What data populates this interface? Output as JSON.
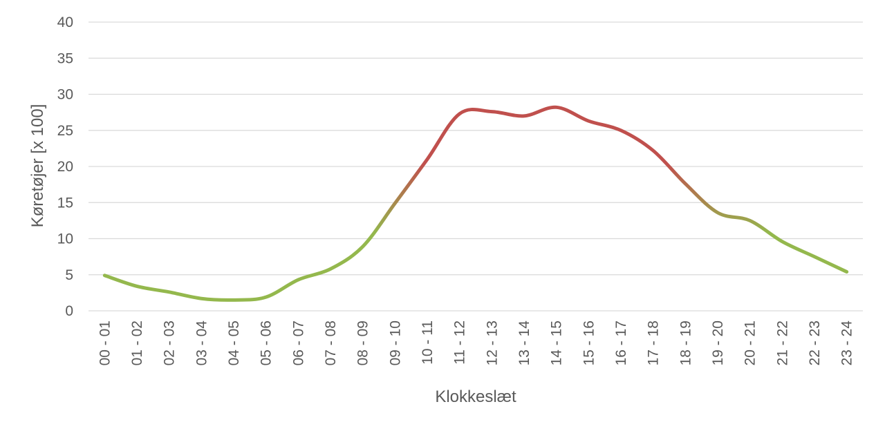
{
  "chart_data": {
    "type": "line",
    "title": "",
    "xlabel": "Klokkeslæt",
    "ylabel": "Køretøjer [x 100]",
    "ylim": [
      0,
      40
    ],
    "yticks": [
      0,
      5,
      10,
      15,
      20,
      25,
      30,
      35,
      40
    ],
    "grid": true,
    "legend": "none",
    "categories": [
      "00 - 01",
      "01 - 02",
      "02 - 03",
      "03 - 04",
      "04 - 05",
      "05 - 06",
      "06 - 07",
      "07 - 08",
      "08 - 09",
      "09 - 10",
      "10 - 11",
      "11 - 12",
      "12 - 13",
      "13 - 14",
      "14 - 15",
      "15 - 16",
      "16 - 17",
      "17 - 18",
      "18 - 19",
      "19 - 20",
      "20 - 21",
      "21 - 22",
      "22 - 23",
      "23 - 24"
    ],
    "series": [
      {
        "values": [
          4.9,
          3.4,
          2.6,
          1.7,
          1.5,
          1.9,
          4.3,
          5.8,
          8.9,
          14.9,
          21.0,
          27.3,
          27.6,
          27.0,
          28.2,
          26.3,
          25.0,
          22.2,
          17.6,
          13.6,
          12.5,
          9.6,
          7.5,
          5.4
        ],
        "color_low": "#94b84d",
        "color_high": "#c0504d"
      }
    ]
  }
}
